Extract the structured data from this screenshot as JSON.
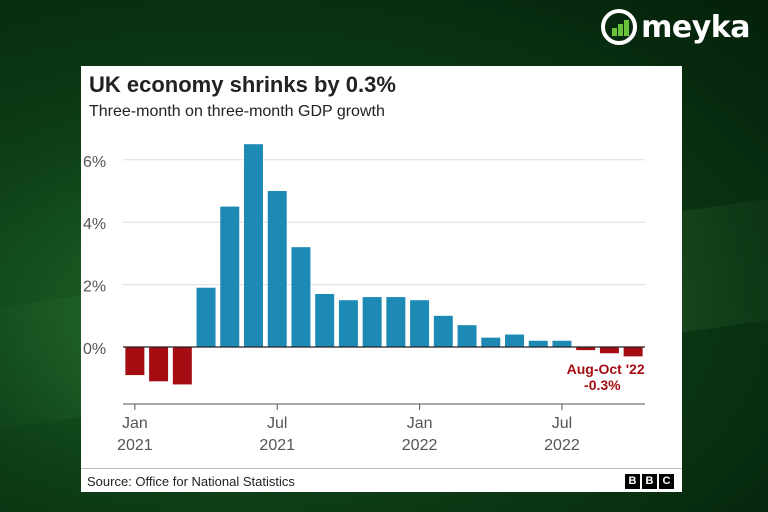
{
  "brand": {
    "name": "meyka"
  },
  "chart_data": {
    "type": "bar",
    "title": "UK economy shrinks by 0.3%",
    "subtitle": "Three-month on three-month GDP growth",
    "categories": [
      "Jan 2021",
      "Feb 2021",
      "Mar 2021",
      "Apr 2021",
      "May 2021",
      "Jun 2021",
      "Jul 2021",
      "Aug 2021",
      "Sep 2021",
      "Oct 2021",
      "Nov 2021",
      "Dec 2021",
      "Jan 2022",
      "Feb 2022",
      "Mar 2022",
      "Apr 2022",
      "May 2022",
      "Jun 2022",
      "Jul 2022",
      "Aug 2022",
      "Sep 2022",
      "Oct 2022"
    ],
    "values": [
      -0.9,
      -1.1,
      -1.2,
      1.9,
      4.5,
      6.5,
      5.0,
      3.2,
      1.7,
      1.5,
      1.6,
      1.6,
      1.5,
      1.0,
      0.7,
      0.3,
      0.4,
      0.2,
      0.2,
      -0.1,
      -0.2,
      -0.3
    ],
    "colors": {
      "positive": "#1d8ab5",
      "negative": "#a50d12",
      "grid": "#dddddd"
    },
    "ylim": [
      -1.8,
      7
    ],
    "yticks": [
      {
        "value": 0,
        "label": "0%"
      },
      {
        "value": 2,
        "label": "2%"
      },
      {
        "value": 4,
        "label": "4%"
      },
      {
        "value": 6,
        "label": "6%"
      }
    ],
    "xticks": [
      {
        "index": 0,
        "month": "Jan",
        "year": "2021"
      },
      {
        "index": 6,
        "month": "Jul",
        "year": "2021"
      },
      {
        "index": 12,
        "month": "Jan",
        "year": "2022"
      },
      {
        "index": 18,
        "month": "Jul",
        "year": "2022"
      }
    ],
    "annotation": {
      "index": 21,
      "line1": "Aug-Oct '22",
      "line2": "-0.3%"
    },
    "grid": true,
    "source": "Source: Office for National Statistics"
  },
  "footer": {
    "bbc": [
      "B",
      "B",
      "C"
    ]
  }
}
